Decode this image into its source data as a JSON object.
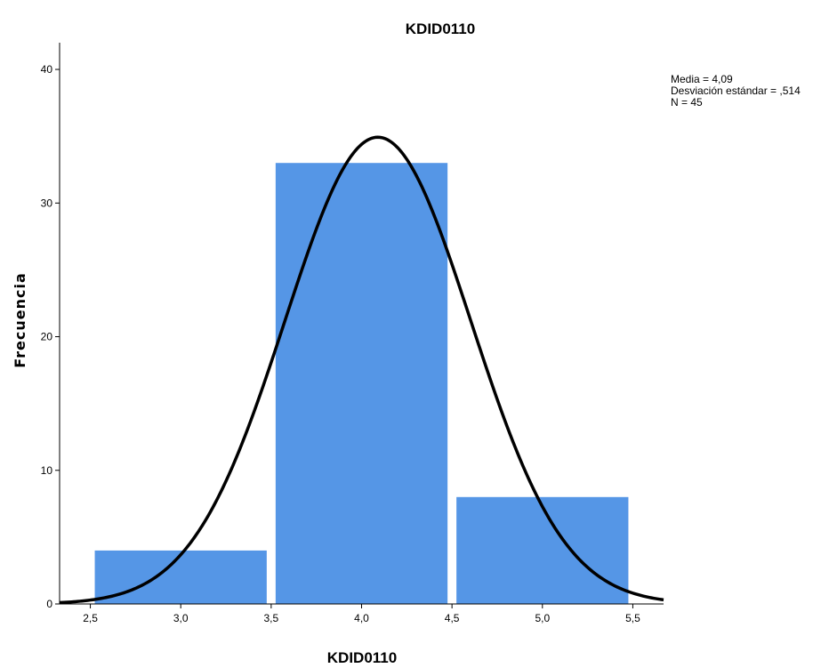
{
  "chart_data": {
    "type": "bar",
    "title": "KDID0110",
    "xlabel": "KDID0110",
    "ylabel": "Frecuencia",
    "bins": [
      {
        "from": 2.5,
        "to": 3.5,
        "value": 4
      },
      {
        "from": 3.5,
        "to": 4.5,
        "value": 33
      },
      {
        "from": 4.5,
        "to": 5.5,
        "value": 8
      }
    ],
    "xlim": [
      2.33,
      5.67
    ],
    "ylim": [
      0,
      42
    ],
    "x_ticks": [
      "2,5",
      "3,0",
      "3,5",
      "4,0",
      "4,5",
      "5,0",
      "5,5"
    ],
    "x_tick_values": [
      2.5,
      3.0,
      3.5,
      4.0,
      4.5,
      5.0,
      5.5
    ],
    "y_ticks": [
      "0",
      "10",
      "20",
      "30",
      "40"
    ],
    "y_tick_values": [
      0,
      10,
      20,
      30,
      40
    ],
    "stats": [
      "Media = 4,09",
      "Desviación estándar = ,514",
      "N = 45"
    ],
    "normal_curve": {
      "mean": 4.09,
      "sd": 0.514,
      "n": 45,
      "bin_width": 1
    },
    "colors": {
      "bar": "#5596e6",
      "curve": "#000000",
      "axis": "#000000"
    },
    "grid": false,
    "legend": "top-right"
  }
}
